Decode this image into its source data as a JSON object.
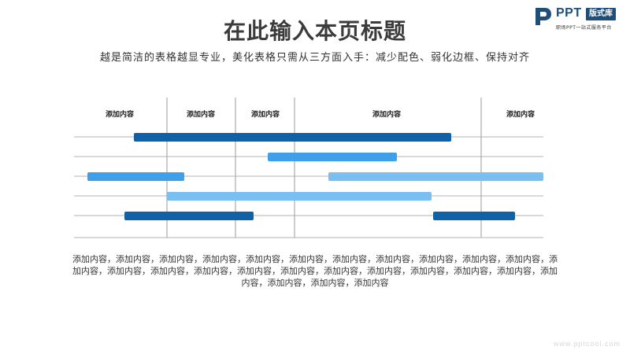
{
  "page": {
    "title": "在此输入本页标题",
    "subtitle": "越是简洁的表格越显专业，美化表格只需从三方面入手：减少配色、弱化边框、保持对齐",
    "body": "添加内容，添加内容，添加内容，添加内容，添加内容，添加内容，添加内容，添加内容，添加内容，添加内容，添加内容，添加内容，添加内容，添加内容，添加内容，添加内容，添加内容，添加内容，添加内容，添加内容，添加内容，添加内容，添加内容，添加内容，添加内容，添加内容"
  },
  "logo": {
    "brand": "PPT",
    "badge": "版式库",
    "tagline": "职场PPT一站式服务平台"
  },
  "watermark": "www.pptcool.com",
  "colors": {
    "dark_blue": "#0f62a8",
    "mid_blue": "#3ea0ea",
    "light_blue": "#79bff2",
    "grid": "#b3b3b3",
    "logo": "#1f4e79"
  },
  "table": {
    "headers": [
      "添加内容",
      "添加内容",
      "添加内容",
      "添加内容",
      "添加内容"
    ]
  }
}
